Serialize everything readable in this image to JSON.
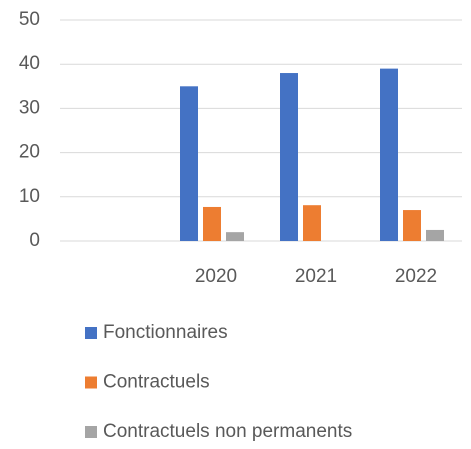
{
  "chart_data": {
    "type": "bar",
    "categories": [
      null,
      "2020",
      "2021",
      "2022"
    ],
    "series": [
      {
        "name": "Fonctionnaires",
        "color": "#4472c4",
        "values": [
          null,
          35,
          38,
          39
        ]
      },
      {
        "name": "Contractuels",
        "color": "#ed7d31",
        "values": [
          null,
          7.7,
          8.1,
          7
        ]
      },
      {
        "name": "Contractuels non permanents",
        "color": "#a5a5a5",
        "values": [
          null,
          2,
          0,
          2.5
        ]
      }
    ],
    "ylim": [
      0,
      50
    ],
    "yticks": [
      0,
      10,
      20,
      30,
      40,
      50
    ],
    "grid": true,
    "legend": "bottom"
  }
}
